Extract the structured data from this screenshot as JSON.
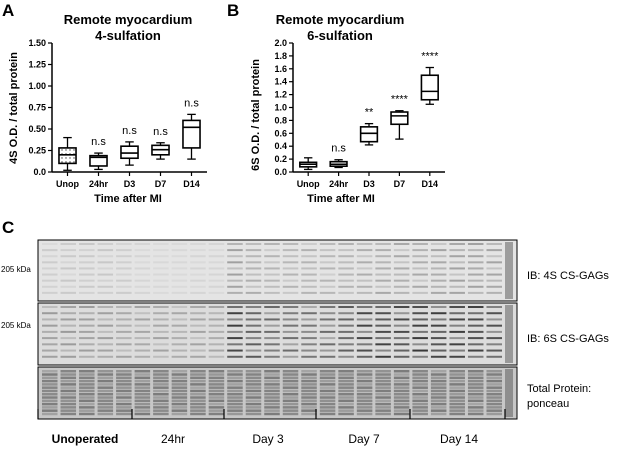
{
  "panels": {
    "a": "A",
    "b": "B",
    "c": "C"
  },
  "chart_data": [
    {
      "type": "box",
      "title": [
        "Remote myocardium",
        "4-sulfation"
      ],
      "xlabel": "Time after MI",
      "ylabel": "4S O.D. / total protein",
      "ylim": [
        0,
        1.5
      ],
      "yticks": [
        "0.0",
        "0.25",
        "0.50",
        "0.75",
        "1.00",
        "1.25",
        "1.50"
      ],
      "categories": [
        "Unop",
        "24hr",
        "D3",
        "D7",
        "D14"
      ],
      "boxes": [
        {
          "min": 0.02,
          "q1": 0.1,
          "median": 0.2,
          "q3": 0.28,
          "max": 0.4,
          "significance": ""
        },
        {
          "min": 0.03,
          "q1": 0.07,
          "median": 0.17,
          "q3": 0.19,
          "max": 0.22,
          "significance": "n.s"
        },
        {
          "min": 0.08,
          "q1": 0.16,
          "median": 0.22,
          "q3": 0.3,
          "max": 0.35,
          "significance": "n.s"
        },
        {
          "min": 0.15,
          "q1": 0.2,
          "median": 0.26,
          "q3": 0.31,
          "max": 0.34,
          "significance": "n.s"
        },
        {
          "min": 0.15,
          "q1": 0.28,
          "median": 0.52,
          "q3": 0.6,
          "max": 0.67,
          "significance": "n.s"
        }
      ]
    },
    {
      "type": "box",
      "title": [
        "Remote myocardium",
        "6-sulfation"
      ],
      "xlabel": "Time after MI",
      "ylabel": "6S O.D. / total protein",
      "ylim": [
        0,
        2.0
      ],
      "yticks": [
        "0.0",
        "0.2",
        "0.4",
        "0.6",
        "0.8",
        "1.0",
        "1.2",
        "1.4",
        "1.6",
        "1.8",
        "2.0"
      ],
      "categories": [
        "Unop",
        "24hr",
        "D3",
        "D7",
        "D14"
      ],
      "boxes": [
        {
          "min": 0.04,
          "q1": 0.08,
          "median": 0.12,
          "q3": 0.15,
          "max": 0.22,
          "significance": ""
        },
        {
          "min": 0.07,
          "q1": 0.09,
          "median": 0.12,
          "q3": 0.16,
          "max": 0.19,
          "significance": "n.s"
        },
        {
          "min": 0.42,
          "q1": 0.47,
          "median": 0.6,
          "q3": 0.7,
          "max": 0.75,
          "significance": "**"
        },
        {
          "min": 0.51,
          "q1": 0.74,
          "median": 0.87,
          "q3": 0.93,
          "max": 0.95,
          "significance": "****"
        },
        {
          "min": 1.05,
          "q1": 1.12,
          "median": 1.25,
          "q3": 1.5,
          "max": 1.62,
          "significance": "****"
        }
      ]
    }
  ],
  "blot": {
    "rows": [
      {
        "marker": "205 kDa",
        "label": [
          "IB: 4S CS-GAGs"
        ]
      },
      {
        "marker": "205 kDa",
        "label": [
          "IB: 6S CS-GAGs"
        ]
      },
      {
        "marker": "",
        "label": [
          "Total Protein:",
          "ponceau"
        ]
      }
    ],
    "groups": [
      "Unoperated",
      "24hr",
      "Day 3",
      "Day 7",
      "Day 14"
    ]
  }
}
